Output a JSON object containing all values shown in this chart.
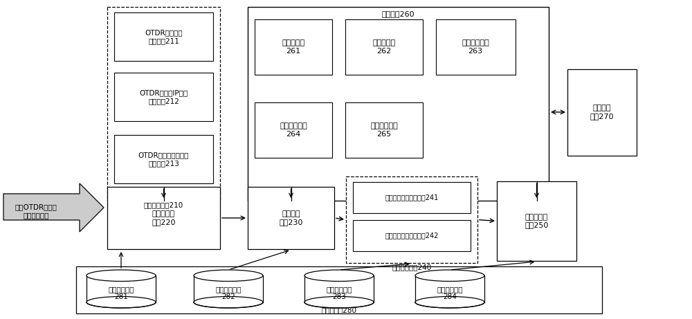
{
  "bg": "#ffffff",
  "lc": "#000000",
  "fc": "#ffffff",
  "fig_w": 10.0,
  "fig_h": 4.61,
  "dpi": 100,
  "fonts": [
    "SimHei",
    "DejaVu Sans"
  ],
  "input_label": "远程OTDR下位机\n所测原始数据",
  "param_set_label": "参数设置单元210",
  "label211": "OTDR测量参数\n设置模块211",
  "label212": "OTDR下位机IP地址\n设置模块212",
  "label213": "OTDR下位机远程重启\n控制模块213",
  "display_label": "显示单元260",
  "label261": "迹线图模块\n261",
  "label262": "拓扑图模块\n262",
  "label263": "数据表格模块\n263",
  "label264": "提示消息模块\n264",
  "label265": "状态监控模块\n265",
  "label270": "辅助功能\n单元270",
  "label220": "光开关控制\n单元220",
  "label230": "参数获取\n单元230",
  "node_set_label": "节点设置单元240",
  "label241": "自动默认方式设置模块241",
  "label242": "手动选择方式设置模块242",
  "label250": "测量与分析\n单元250",
  "db_label": "数据库文件280",
  "label281": "参数配置文件\n281",
  "label282": "参考数据文件\n282",
  "label283": "节点信息文件\n283",
  "label284": "测量数据文件\n284"
}
